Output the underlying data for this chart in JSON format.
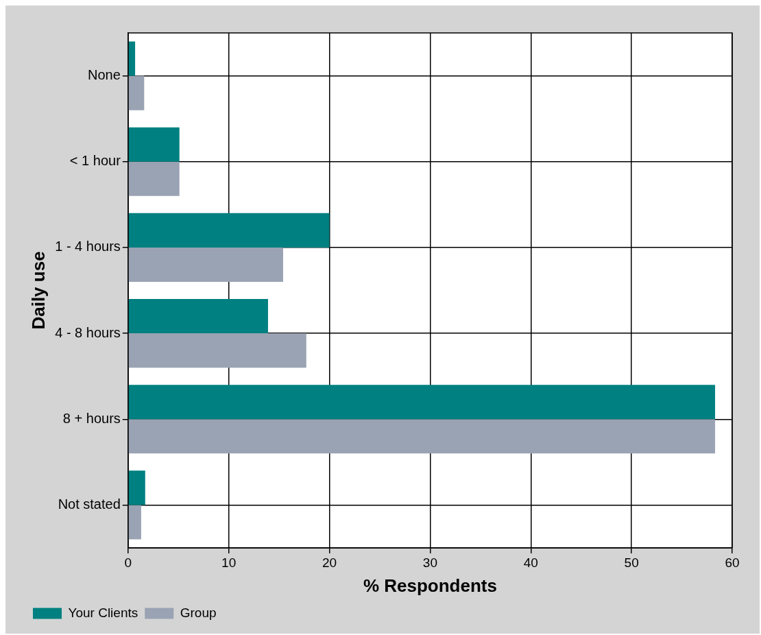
{
  "chart_data": {
    "type": "bar",
    "orientation": "horizontal",
    "ylabel": "Daily use",
    "xlabel": "% Respondents",
    "categories": [
      "None",
      "< 1 hour",
      "1 - 4 hours",
      "4 - 8 hours",
      "8 + hours",
      "Not stated"
    ],
    "series": [
      {
        "name": "Your Clients",
        "color": "#008080",
        "values": [
          0.7,
          5.1,
          20,
          13.9,
          58.3,
          1.7
        ]
      },
      {
        "name": "Group",
        "color": "#9aa3b3",
        "values": [
          1.6,
          5.1,
          15.4,
          17.7,
          58.3,
          1.3
        ]
      }
    ],
    "xlim": [
      0,
      60
    ],
    "xticks": [
      0,
      10,
      20,
      30,
      40,
      50,
      60
    ],
    "grid": true,
    "legend": "bottom left"
  }
}
